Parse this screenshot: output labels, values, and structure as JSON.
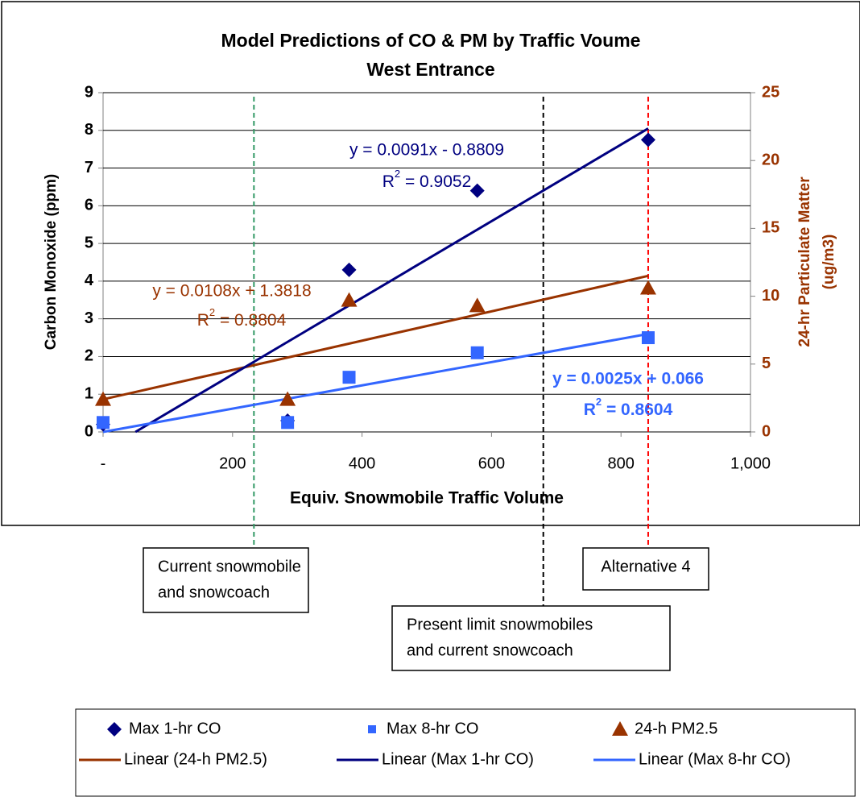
{
  "chart_data": {
    "type": "scatter",
    "title": [
      "Model Predictions of CO & PM by Traffic Voume",
      "West Entrance"
    ],
    "x_label": "Equiv. Snowmobile Traffic Volume",
    "y_label": "Carbon Monoxide  (ppm)",
    "y2_label": [
      "24-hr Particulate Matter",
      "(ug/m3)"
    ],
    "xlim": [
      0,
      1000
    ],
    "xticks": [
      {
        "value": 0,
        "label": "-"
      },
      200,
      400,
      600,
      800,
      {
        "value": 1000,
        "label": "1,000"
      }
    ],
    "ylim": [
      0,
      9
    ],
    "yticks": [
      0,
      1,
      2,
      3,
      4,
      5,
      6,
      7,
      8,
      9
    ],
    "y2lim": [
      0,
      25
    ],
    "y2ticks": [
      0,
      5,
      10,
      15,
      20,
      25
    ],
    "grid": true,
    "legend": "bottom",
    "series": [
      {
        "name": "Max 1-hr CO",
        "kind": "scatter",
        "marker": "diamond",
        "color": "#000080",
        "x": [
          0,
          285,
          380,
          578,
          842
        ],
        "values": [
          0.2,
          0.3,
          4.3,
          6.4,
          7.75
        ]
      },
      {
        "name": "Max 8-hr CO",
        "kind": "scatter",
        "marker": "square",
        "color": "#3366ff",
        "x": [
          0,
          285,
          380,
          578,
          842
        ],
        "values": [
          0.25,
          0.25,
          1.45,
          2.1,
          2.5
        ]
      },
      {
        "name": "24-h PM2.5",
        "kind": "scatter",
        "marker": "triangle",
        "color": "#993300",
        "axis": "y2",
        "x": [
          0,
          285,
          380,
          578,
          842
        ],
        "values": [
          2.4,
          2.4,
          9.7,
          9.3,
          10.6
        ]
      },
      {
        "name": "Linear (24-h PM2.5)",
        "kind": "line",
        "color": "#993300",
        "axis": "y2",
        "x": [
          0,
          842
        ],
        "values": [
          2.4,
          11.5
        ]
      },
      {
        "name": "Linear (Max 1-hr CO)",
        "kind": "line",
        "color": "#000080",
        "x": [
          50,
          842
        ],
        "values": [
          0,
          8.05
        ]
      },
      {
        "name": "Linear (Max 8-hr CO)",
        "kind": "line",
        "color": "#3366ff",
        "x": [
          0,
          842
        ],
        "values": [
          0,
          2.6
        ]
      }
    ],
    "equations": [
      {
        "equation": "y = 0.0091x - 0.8809",
        "r2": [
          "R",
          "2",
          " = 0.9052"
        ],
        "color": "#000080",
        "bold": false
      },
      {
        "equation": "y = 0.0108x + 1.3818",
        "r2": [
          "R",
          "2",
          " = 0.8804"
        ],
        "color": "#993300",
        "bold": false
      },
      {
        "equation": "y = 0.0025x + 0.066",
        "r2": [
          "R",
          "2",
          " = 0.8604"
        ],
        "color": "#3366ff",
        "bold": true
      }
    ],
    "reference_lines": [
      {
        "x": 233,
        "color": "#339966",
        "label": [
          "Current snowmobile",
          "and snowcoach"
        ]
      },
      {
        "x": 680,
        "color": "#000000",
        "label": [
          "Present limit snowmobiles",
          "and current snowcoach"
        ]
      },
      {
        "x": 842,
        "color": "#ff0000",
        "label": [
          "Alternative 4"
        ]
      }
    ]
  }
}
